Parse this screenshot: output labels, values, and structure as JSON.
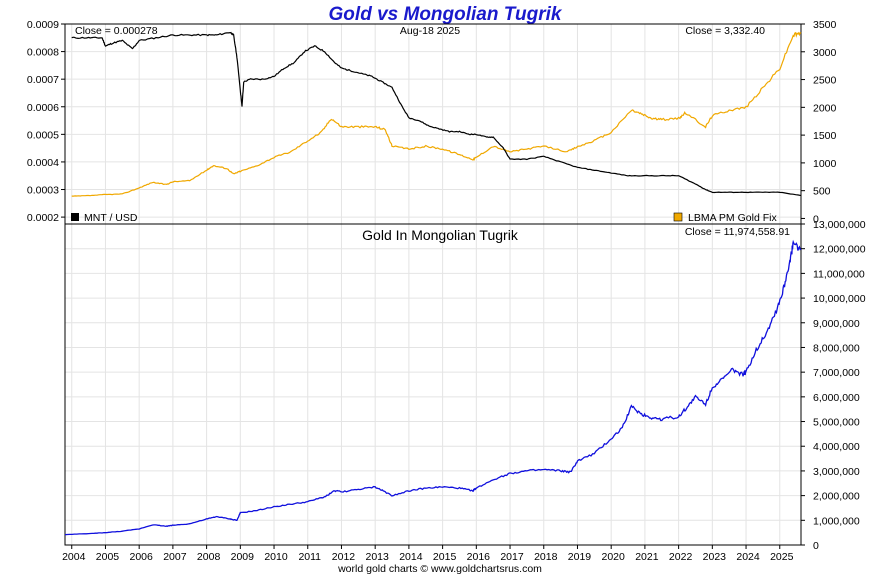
{
  "page_title": "Gold vs Mongolian Tugrik",
  "footer": "world gold charts © www.goldchartsrus.com",
  "colors": {
    "title": "#1a1acc",
    "mnt_line": "#000000",
    "gold_line": "#f0a800",
    "tugrik_line": "#1010dd",
    "grid": "#e4e4e4"
  },
  "chart_data": [
    {
      "type": "line",
      "panel": "top",
      "title": "Gold vs Mongolian Tugrik",
      "date_label": "Aug-18  2025",
      "close_left": "Close = 0.000278",
      "close_right": "Close = 3,332.40",
      "x_ticks": [
        "2004",
        "2005",
        "2006",
        "2007",
        "2008",
        "2009",
        "2010",
        "2011",
        "2012",
        "2013",
        "2014",
        "2015",
        "2016",
        "2017",
        "2018",
        "2019",
        "2020",
        "2021",
        "2022",
        "2023",
        "2024",
        "2025"
      ],
      "xlim": [
        2003.8,
        2025.63
      ],
      "y_left_ticks": [
        "0.0009",
        "0.0008",
        "0.0007",
        "0.0006",
        "0.0005",
        "0.0004",
        "0.0003",
        "0.0002"
      ],
      "y_left_lim": [
        0.000175,
        0.0009
      ],
      "y_right_ticks": [
        "3500",
        "3000",
        "2500",
        "2000",
        "1500",
        "1000",
        "500",
        "0"
      ],
      "y_right_lim": [
        -100,
        3500
      ],
      "grid": true,
      "series": [
        {
          "name": "MNT / USD",
          "axis": "left",
          "x": [
            2004.0,
            2004.5,
            2004.9,
            2005.0,
            2005.2,
            2005.5,
            2005.8,
            2006.0,
            2006.5,
            2007.0,
            2007.5,
            2008.0,
            2008.3,
            2008.7,
            2008.8,
            2008.9,
            2009.0,
            2009.05,
            2009.1,
            2009.3,
            2009.7,
            2010.0,
            2010.3,
            2010.6,
            2010.9,
            2011.2,
            2011.5,
            2011.8,
            2012.0,
            2012.3,
            2012.6,
            2012.9,
            2013.2,
            2013.5,
            2013.8,
            2014.0,
            2014.3,
            2014.6,
            2014.9,
            2015.2,
            2015.5,
            2015.8,
            2016.0,
            2016.3,
            2016.5,
            2016.8,
            2017.0,
            2017.5,
            2018.0,
            2018.5,
            2019.0,
            2019.5,
            2020.0,
            2020.5,
            2020.9,
            2021.5,
            2022.0,
            2022.5,
            2022.8,
            2023.0,
            2023.5,
            2024.0,
            2024.5,
            2025.0,
            2025.63
          ],
          "values": [
            0.00085,
            0.00085,
            0.00085,
            0.00082,
            0.00083,
            0.00084,
            0.00081,
            0.00084,
            0.00085,
            0.00086,
            0.00086,
            0.00086,
            0.00086,
            0.00087,
            0.00086,
            0.00078,
            0.00066,
            0.0006,
            0.00069,
            0.0007,
            0.0007,
            0.00071,
            0.00074,
            0.00076,
            0.0008,
            0.00082,
            0.0008,
            0.00076,
            0.00074,
            0.00073,
            0.00072,
            0.00071,
            0.00069,
            0.00067,
            0.0006,
            0.00056,
            0.00055,
            0.00053,
            0.00052,
            0.00051,
            0.00051,
            0.0005,
            0.0005,
            0.00049,
            0.00049,
            0.00045,
            0.00041,
            0.00041,
            0.00042,
            0.0004,
            0.00038,
            0.00037,
            0.00036,
            0.00035,
            0.00035,
            0.00035,
            0.00035,
            0.00032,
            0.0003,
            0.00029,
            0.00029,
            0.00029,
            0.00029,
            0.00029,
            0.000278
          ]
        },
        {
          "name": "LBMA PM Gold Fix",
          "axis": "right",
          "x": [
            2004.0,
            2004.5,
            2005.0,
            2005.5,
            2006.0,
            2006.4,
            2006.8,
            2007.0,
            2007.5,
            2008.0,
            2008.2,
            2008.6,
            2008.8,
            2009.0,
            2009.5,
            2010.0,
            2010.5,
            2011.0,
            2011.4,
            2011.7,
            2012.0,
            2012.5,
            2013.0,
            2013.3,
            2013.5,
            2014.0,
            2014.5,
            2015.0,
            2015.5,
            2015.9,
            2016.0,
            2016.5,
            2017.0,
            2017.5,
            2018.0,
            2018.7,
            2019.0,
            2019.5,
            2020.0,
            2020.6,
            2020.9,
            2021.2,
            2021.5,
            2022.0,
            2022.2,
            2022.8,
            2023.0,
            2023.5,
            2024.0,
            2024.5,
            2025.0,
            2025.4,
            2025.63
          ],
          "values": [
            400,
            410,
            430,
            440,
            550,
            650,
            610,
            660,
            680,
            870,
            950,
            900,
            800,
            850,
            950,
            1100,
            1200,
            1400,
            1550,
            1800,
            1650,
            1650,
            1650,
            1600,
            1300,
            1250,
            1300,
            1250,
            1150,
            1060,
            1100,
            1300,
            1200,
            1250,
            1300,
            1200,
            1290,
            1400,
            1550,
            1950,
            1880,
            1800,
            1780,
            1800,
            1900,
            1650,
            1850,
            1950,
            2000,
            2350,
            2700,
            3300,
            3332.4
          ]
        }
      ],
      "legend_left": "MNT / USD",
      "legend_right": "LBMA PM Gold Fix"
    },
    {
      "type": "line",
      "panel": "bottom",
      "title": "Gold In Mongolian Tugrik",
      "close_right": "Close = 11,974,558.91",
      "x_ticks": [
        "2004",
        "2005",
        "2006",
        "2007",
        "2008",
        "2009",
        "2010",
        "2011",
        "2012",
        "2013",
        "2014",
        "2015",
        "2016",
        "2017",
        "2018",
        "2019",
        "2020",
        "2021",
        "2022",
        "2023",
        "2024",
        "2025"
      ],
      "xlim": [
        2003.8,
        2025.63
      ],
      "y_right_ticks": [
        "13,000,000",
        "12,000,000",
        "11,000,000",
        "10,000,000",
        "9,000,000",
        "8,000,000",
        "7,000,000",
        "6,000,000",
        "5,000,000",
        "4,000,000",
        "3,000,000",
        "2,000,000",
        "1,000,000",
        "0"
      ],
      "ylim": [
        0,
        13000000
      ],
      "grid": true,
      "series": [
        {
          "name": "Gold In Mongolian Tugrik",
          "x": [
            2003.8,
            2004.5,
            2005.0,
            2005.5,
            2006.0,
            2006.4,
            2006.8,
            2007.0,
            2007.5,
            2008.0,
            2008.3,
            2008.7,
            2008.9,
            2009.0,
            2009.5,
            2010.0,
            2010.5,
            2011.0,
            2011.5,
            2011.8,
            2012.0,
            2012.5,
            2013.0,
            2013.3,
            2013.5,
            2014.0,
            2014.5,
            2015.0,
            2015.5,
            2015.9,
            2016.0,
            2016.5,
            2017.0,
            2017.5,
            2018.0,
            2018.5,
            2018.8,
            2019.0,
            2019.5,
            2020.0,
            2020.3,
            2020.6,
            2020.9,
            2021.2,
            2021.5,
            2022.0,
            2022.2,
            2022.5,
            2022.8,
            2023.0,
            2023.3,
            2023.6,
            2023.9,
            2024.0,
            2024.3,
            2024.6,
            2024.9,
            2025.1,
            2025.3,
            2025.4,
            2025.63
          ],
          "values": [
            420000,
            460000,
            500000,
            560000,
            650000,
            820000,
            760000,
            800000,
            860000,
            1050000,
            1150000,
            1050000,
            1000000,
            1300000,
            1400000,
            1550000,
            1650000,
            1750000,
            1950000,
            2200000,
            2150000,
            2250000,
            2350000,
            2150000,
            2000000,
            2200000,
            2300000,
            2350000,
            2300000,
            2200000,
            2300000,
            2650000,
            2900000,
            3000000,
            3050000,
            3000000,
            2950000,
            3400000,
            3700000,
            4300000,
            4700000,
            5600000,
            5300000,
            5150000,
            5100000,
            5200000,
            5500000,
            6000000,
            5700000,
            6400000,
            6700000,
            7100000,
            6900000,
            7000000,
            7900000,
            8600000,
            9500000,
            10300000,
            11500000,
            12200000,
            11974558.91
          ]
        }
      ]
    }
  ]
}
